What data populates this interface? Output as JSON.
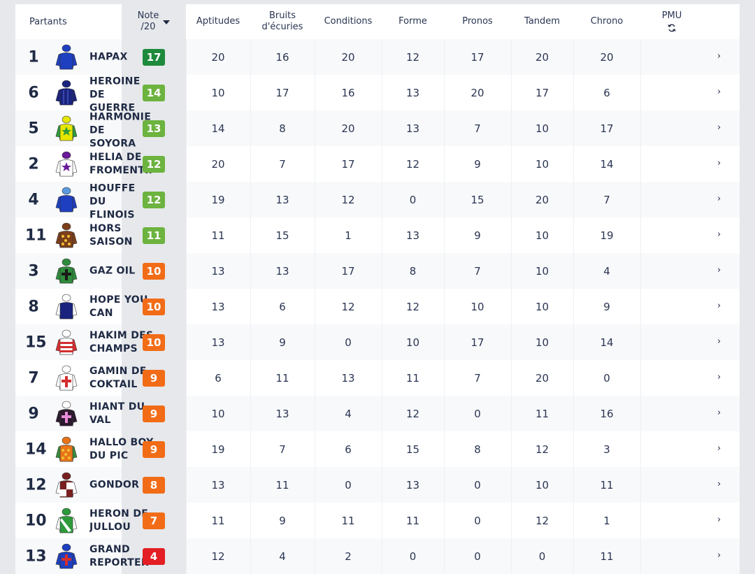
{
  "header": {
    "partants": "Partants",
    "note_line1": "Note",
    "note_line2": "/20",
    "aptitudes": "Aptitudes",
    "bruits_line1": "Bruits",
    "bruits_line2": "d'écuries",
    "conditions": "Conditions",
    "forme": "Forme",
    "pronos": "Pronos",
    "tandem": "Tandem",
    "chrono": "Chrono",
    "pmu": "PMU",
    "sort_icon": "caret-down-icon",
    "pmu_icon": "refresh-icon"
  },
  "colors": {
    "note_high": "#1e8a3c",
    "note_good": "#6cb33f",
    "note_mid": "#f26c17",
    "note_low": "#e31e24"
  },
  "rows": [
    {
      "num": "1",
      "name": "HAPAX",
      "note": "17",
      "tier": "high",
      "aptitudes": "20",
      "bruits": "16",
      "conditions": "20",
      "forme": "12",
      "pronos": "17",
      "tandem": "20",
      "chrono": "20",
      "silk": {
        "body": "#1e3fbf",
        "sleeve": "#1e3fbf",
        "cap": "#1e3fbf",
        "pattern": "blue-plain"
      }
    },
    {
      "num": "6",
      "name": "HEROINE DE GUERRE",
      "note": "14",
      "tier": "good",
      "aptitudes": "10",
      "bruits": "17",
      "conditions": "16",
      "forme": "13",
      "pronos": "20",
      "tandem": "17",
      "chrono": "6",
      "silk": {
        "body": "#1a237e",
        "sleeve": "#1a237e",
        "cap": "#1a237e",
        "pattern": "navy-stripes"
      }
    },
    {
      "num": "5",
      "name": "HARMONIE DE SOYORA",
      "note": "13",
      "tier": "good",
      "aptitudes": "14",
      "bruits": "8",
      "conditions": "20",
      "forme": "13",
      "pronos": "7",
      "tandem": "10",
      "chrono": "17",
      "silk": {
        "body": "#e6e600",
        "sleeve": "#2e9a3c",
        "cap": "#e6e600",
        "pattern": "yellow-star"
      }
    },
    {
      "num": "2",
      "name": "HELIA DE FROMENTIN",
      "note": "12",
      "tier": "good",
      "aptitudes": "20",
      "bruits": "7",
      "conditions": "17",
      "forme": "12",
      "pronos": "9",
      "tandem": "10",
      "chrono": "14",
      "silk": {
        "body": "#ffffff",
        "sleeve": "#ffffff",
        "cap": "#6a1b9a",
        "pattern": "white-purple-star"
      }
    },
    {
      "num": "4",
      "name": "HOUFFE DU FLINOIS",
      "note": "12",
      "tier": "good",
      "aptitudes": "19",
      "bruits": "13",
      "conditions": "12",
      "forme": "0",
      "pronos": "15",
      "tandem": "20",
      "chrono": "7",
      "silk": {
        "body": "#1e3fbf",
        "sleeve": "#1e3fbf",
        "cap": "#5a9be0",
        "pattern": "blue-plain"
      }
    },
    {
      "num": "11",
      "name": "HORS SAISON",
      "note": "11",
      "tier": "good",
      "aptitudes": "11",
      "bruits": "15",
      "conditions": "1",
      "forme": "13",
      "pronos": "9",
      "tandem": "10",
      "chrono": "19",
      "silk": {
        "body": "#7b3f1a",
        "sleeve": "#7b3f1a",
        "cap": "#7b3f1a",
        "pattern": "brown-dots"
      }
    },
    {
      "num": "3",
      "name": "GAZ OIL",
      "note": "10",
      "tier": "mid",
      "aptitudes": "13",
      "bruits": "13",
      "conditions": "17",
      "forme": "8",
      "pronos": "7",
      "tandem": "10",
      "chrono": "4",
      "silk": {
        "body": "#2e8b3c",
        "sleeve": "#2e8b3c",
        "cap": "#2e8b3c",
        "pattern": "green-cross"
      }
    },
    {
      "num": "8",
      "name": "HOPE YOU CAN",
      "note": "10",
      "tier": "mid",
      "aptitudes": "13",
      "bruits": "6",
      "conditions": "12",
      "forme": "12",
      "pronos": "10",
      "tandem": "10",
      "chrono": "9",
      "silk": {
        "body": "#1a237e",
        "sleeve": "#ffffff",
        "cap": "#ffffff",
        "pattern": "navy-white"
      }
    },
    {
      "num": "15",
      "name": "HAKIM DES CHAMPS",
      "note": "10",
      "tier": "mid",
      "aptitudes": "13",
      "bruits": "9",
      "conditions": "0",
      "forme": "10",
      "pronos": "17",
      "tandem": "10",
      "chrono": "14",
      "silk": {
        "body": "#ffffff",
        "sleeve": "#d32f2f",
        "cap": "#ffffff",
        "pattern": "white-red-hoops"
      }
    },
    {
      "num": "7",
      "name": "GAMIN DE COKTAIL",
      "note": "9",
      "tier": "mid",
      "aptitudes": "6",
      "bruits": "11",
      "conditions": "13",
      "forme": "11",
      "pronos": "7",
      "tandem": "20",
      "chrono": "0",
      "silk": {
        "body": "#ffffff",
        "sleeve": "#ffffff",
        "cap": "#ffffff",
        "pattern": "white-red-cross"
      }
    },
    {
      "num": "9",
      "name": "HIANT DU VAL",
      "note": "9",
      "tier": "mid",
      "aptitudes": "10",
      "bruits": "13",
      "conditions": "4",
      "forme": "12",
      "pronos": "0",
      "tandem": "11",
      "chrono": "16",
      "silk": {
        "body": "#2b1a2e",
        "sleeve": "#2b1a2e",
        "cap": "#ffffff",
        "pattern": "black-pink-cross"
      }
    },
    {
      "num": "14",
      "name": "HALLO BOY DU PIC",
      "note": "9",
      "tier": "mid",
      "aptitudes": "19",
      "bruits": "7",
      "conditions": "6",
      "forme": "15",
      "pronos": "8",
      "tandem": "12",
      "chrono": "3",
      "silk": {
        "body": "#e8741a",
        "sleeve": "#3a8b3c",
        "cap": "#e8741a",
        "pattern": "orange-dots"
      }
    },
    {
      "num": "12",
      "name": "GONDOR",
      "note": "8",
      "tier": "mid",
      "aptitudes": "13",
      "bruits": "11",
      "conditions": "0",
      "forme": "13",
      "pronos": "0",
      "tandem": "10",
      "chrono": "11",
      "silk": {
        "body": "#7a1f1f",
        "sleeve": "#ffffff",
        "cap": "#7a1f1f",
        "pattern": "maroon-white"
      }
    },
    {
      "num": "10",
      "name": "HERON DE JULLOU",
      "note": "7",
      "tier": "mid",
      "aptitudes": "11",
      "bruits": "9",
      "conditions": "11",
      "forme": "11",
      "pronos": "0",
      "tandem": "12",
      "chrono": "1",
      "silk": {
        "body": "#2e9a3c",
        "sleeve": "#ffffff",
        "cap": "#2e9a3c",
        "pattern": "green-sash"
      }
    },
    {
      "num": "13",
      "name": "GRAND REPORTER",
      "note": "4",
      "tier": "low",
      "aptitudes": "12",
      "bruits": "4",
      "conditions": "2",
      "forme": "0",
      "pronos": "0",
      "tandem": "0",
      "chrono": "11",
      "silk": {
        "body": "#1e3fbf",
        "sleeve": "#1e3fbf",
        "cap": "#1e3fbf",
        "pattern": "blue-red-cross"
      }
    }
  ]
}
